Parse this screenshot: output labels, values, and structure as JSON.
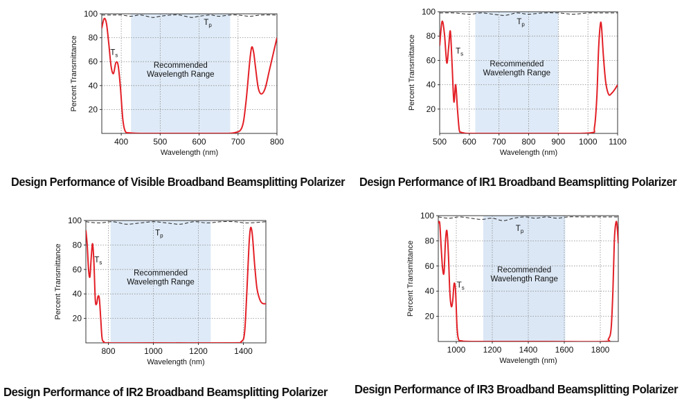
{
  "chart_data": [
    {
      "type": "line",
      "caption": "Design Performance of Visible Broadband Beamsplitting Polarizer",
      "xlabel": "Wavelength (nm)",
      "ylabel": "Percent Transmittance",
      "xlim": [
        350,
        800
      ],
      "ylim": [
        0,
        100
      ],
      "xticks": [
        400,
        500,
        600,
        700,
        800
      ],
      "yticks": [
        20,
        40,
        60,
        80,
        100
      ],
      "grid": true,
      "shaded_range": [
        425,
        680
      ],
      "shaded_color": "#deeaf7",
      "region_label": [
        "Recommended",
        "Wavelength Range"
      ],
      "annotations": [
        {
          "label": "T",
          "sub": "p",
          "x": 612,
          "y": 93
        },
        {
          "label": "T",
          "sub": "s",
          "x": 372,
          "y": 68
        }
      ],
      "series": [
        {
          "name": "Tp",
          "style": "dashed",
          "color": "#222222",
          "x": [
            350,
            380,
            400,
            425,
            450,
            480,
            500,
            530,
            550,
            580,
            600,
            630,
            650,
            680,
            700,
            730,
            760,
            800
          ],
          "y": [
            99,
            99,
            99,
            98,
            99,
            97,
            98,
            99,
            99,
            97,
            98,
            99,
            98,
            99,
            99,
            98,
            99,
            99
          ]
        },
        {
          "name": "Ts",
          "style": "solid",
          "color": "#e31f26",
          "x": [
            350,
            356,
            362,
            368,
            374,
            380,
            386,
            392,
            398,
            404,
            410,
            420,
            450,
            500,
            600,
            650,
            690,
            710,
            720,
            730,
            735,
            740,
            745,
            752,
            760,
            770,
            780,
            790,
            800
          ],
          "y": [
            88,
            96,
            92,
            75,
            56,
            50,
            59,
            57,
            38,
            12,
            2,
            0.5,
            0,
            0,
            0,
            0,
            0.5,
            5,
            25,
            60,
            72,
            68,
            55,
            38,
            33,
            38,
            52,
            66,
            80
          ]
        }
      ]
    },
    {
      "type": "line",
      "caption": "Design Performance of IR1 Broadband Beamsplitting Polarizer",
      "xlabel": "Wavelength (nm)",
      "ylabel": "Percent Transmittance",
      "xlim": [
        500,
        1100
      ],
      "ylim": [
        0,
        100
      ],
      "xticks": [
        500,
        600,
        700,
        800,
        900,
        1000,
        1100
      ],
      "yticks": [
        20,
        40,
        60,
        80,
        100
      ],
      "grid": true,
      "shaded_range": [
        620,
        900
      ],
      "shaded_color": "#deeaf7",
      "region_label": [
        "Recommended",
        "Wavelength Range"
      ],
      "annotations": [
        {
          "label": "T",
          "sub": "p",
          "x": 760,
          "y": 92
        },
        {
          "label": "T",
          "sub": "s",
          "x": 554,
          "y": 68
        }
      ],
      "series": [
        {
          "name": "Tp",
          "style": "dashed",
          "color": "#222222",
          "x": [
            500,
            550,
            600,
            640,
            680,
            720,
            760,
            800,
            850,
            900,
            950,
            1000,
            1050,
            1100
          ],
          "y": [
            99,
            99,
            98,
            99,
            98,
            97,
            99,
            98,
            99,
            99,
            98,
            99,
            99,
            99
          ]
        },
        {
          "name": "Ts",
          "style": "solid",
          "color": "#e31f26",
          "x": [
            500,
            508,
            516,
            524,
            530,
            536,
            542,
            548,
            554,
            560,
            566,
            572,
            580,
            600,
            700,
            900,
            1010,
            1022,
            1030,
            1036,
            1042,
            1046,
            1052,
            1060,
            1070,
            1080,
            1090,
            1100
          ],
          "y": [
            72,
            92,
            82,
            58,
            70,
            84,
            56,
            26,
            40,
            20,
            3,
            1,
            0.5,
            0,
            0,
            0,
            0.5,
            5,
            30,
            70,
            90,
            87,
            64,
            42,
            32,
            33,
            36,
            40
          ]
        }
      ]
    },
    {
      "type": "line",
      "caption": "Design Performance of IR2 Broadband Beamsplitting Polarizer",
      "xlabel": "Wavelength (nm)",
      "ylabel": "Percent Transmittance",
      "xlim": [
        700,
        1500
      ],
      "ylim": [
        0,
        100
      ],
      "xticks": [
        800,
        1000,
        1200,
        1400
      ],
      "yticks": [
        20,
        40,
        60,
        80,
        100
      ],
      "grid": true,
      "shaded_range": [
        810,
        1255
      ],
      "shaded_color": "#deeaf7",
      "region_label": [
        "Recommended",
        "Wavelength Range"
      ],
      "annotations": [
        {
          "label": "T",
          "sub": "p",
          "x": 1008,
          "y": 90
        },
        {
          "label": "T",
          "sub": "s",
          "x": 738,
          "y": 68
        }
      ],
      "series": [
        {
          "name": "Tp",
          "style": "dashed",
          "color": "#222222",
          "x": [
            700,
            760,
            820,
            880,
            940,
            1000,
            1060,
            1120,
            1180,
            1240,
            1300,
            1360,
            1420,
            1500
          ],
          "y": [
            99,
            98,
            99,
            97,
            98,
            99,
            98,
            97,
            99,
            98,
            99,
            99,
            98,
            99
          ]
        },
        {
          "name": "Ts",
          "style": "solid",
          "color": "#e31f26",
          "x": [
            700,
            706,
            712,
            718,
            724,
            730,
            736,
            742,
            748,
            754,
            760,
            766,
            772,
            780,
            800,
            1000,
            1350,
            1390,
            1405,
            1415,
            1425,
            1432,
            1440,
            1450,
            1460,
            1470,
            1480,
            1490,
            1500
          ],
          "y": [
            92,
            80,
            60,
            54,
            70,
            81,
            65,
            35,
            32,
            38,
            36,
            20,
            4,
            1,
            0,
            0,
            0,
            1,
            8,
            40,
            80,
            94,
            88,
            64,
            45,
            37,
            33,
            32,
            32
          ]
        }
      ]
    },
    {
      "type": "line",
      "caption": "Design Performance of IR3 Broadband Beamsplitting Polarizer",
      "xlabel": "Wavelength (nm)",
      "ylabel": "Percent Transmittance",
      "xlim": [
        900,
        1900
      ],
      "ylim": [
        0,
        100
      ],
      "xticks": [
        1000,
        1200,
        1400,
        1600,
        1800
      ],
      "yticks": [
        20,
        40,
        60,
        80,
        100
      ],
      "grid": true,
      "shaded_range": [
        1150,
        1605
      ],
      "shaded_color": "#dbe7f5",
      "region_label": [
        "Recommended",
        "Wavelength Range"
      ],
      "annotations": [
        {
          "label": "T",
          "sub": "p",
          "x": 1330,
          "y": 90
        },
        {
          "label": "T",
          "sub": "s",
          "x": 1003,
          "y": 45
        }
      ],
      "series": [
        {
          "name": "Tp",
          "style": "dashed",
          "color": "#222222",
          "x": [
            900,
            960,
            1020,
            1080,
            1140,
            1200,
            1260,
            1320,
            1380,
            1440,
            1500,
            1560,
            1620,
            1700,
            1800,
            1900
          ],
          "y": [
            99,
            98,
            99,
            98,
            97,
            98,
            96,
            98,
            99,
            98,
            99,
            98,
            99,
            99,
            99,
            99
          ]
        },
        {
          "name": "Ts",
          "style": "solid",
          "color": "#e31f26",
          "x": [
            900,
            908,
            916,
            924,
            932,
            940,
            948,
            956,
            964,
            972,
            980,
            988,
            996,
            1004,
            1012,
            1030,
            1100,
            1500,
            1820,
            1845,
            1860,
            1870,
            1878,
            1885,
            1892,
            1900
          ],
          "y": [
            94,
            94,
            75,
            58,
            55,
            80,
            88,
            70,
            40,
            28,
            32,
            46,
            40,
            12,
            2,
            0.5,
            0,
            0,
            0,
            2,
            10,
            40,
            80,
            93,
            94,
            78
          ]
        }
      ]
    }
  ]
}
